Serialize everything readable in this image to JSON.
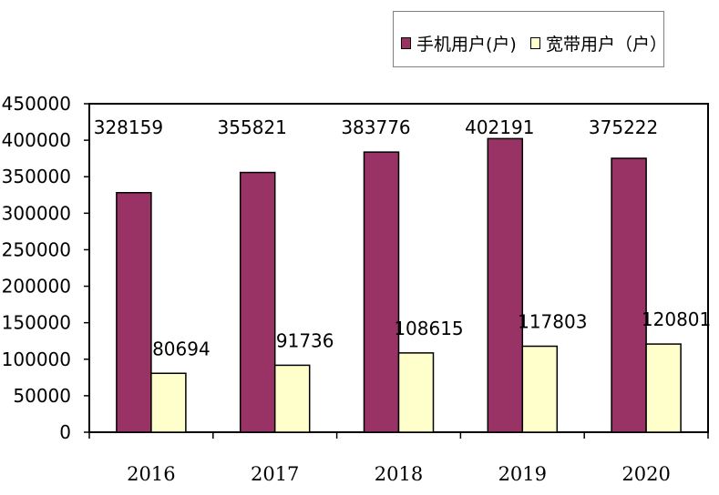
{
  "chart_data": {
    "type": "bar",
    "categories": [
      "2016",
      "2017",
      "2018",
      "2019",
      "2020"
    ],
    "series": [
      {
        "name": "手机用户(户)",
        "color": "#993366",
        "values": [
          328159,
          355821,
          383776,
          402191,
          375222
        ]
      },
      {
        "name": "宽带用户（户）",
        "color": "#ffffcc",
        "values": [
          80694,
          91736,
          108615,
          117803,
          120801
        ]
      }
    ],
    "ylim": [
      0,
      450000
    ],
    "yticks": [
      0,
      50000,
      100000,
      150000,
      200000,
      250000,
      300000,
      350000,
      400000,
      450000
    ],
    "title": "",
    "xlabel": "",
    "ylabel": "",
    "grid": false,
    "legend_position": "top-right"
  }
}
